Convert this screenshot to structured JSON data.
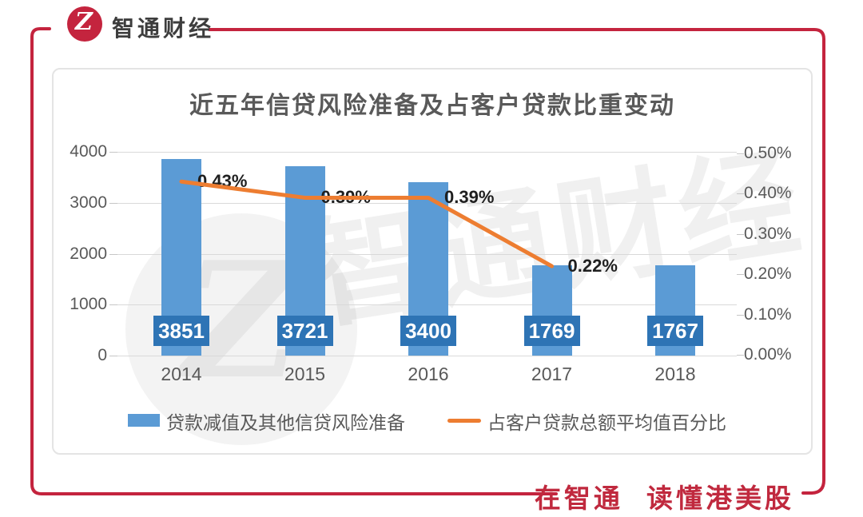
{
  "header": {
    "logo_text": "智通财经",
    "logo_glyph": "Z"
  },
  "footer": {
    "tagline": "在智通 读懂港美股"
  },
  "watermark": {
    "text": "智通财经",
    "glyph": "Z"
  },
  "colors": {
    "brand_red": "#C4243E",
    "bar": "#5B9BD5",
    "bar_label_bg": "#2E74B5",
    "line": "#ED7D31",
    "axis_text": "#595959",
    "gridline": "#D9D9D9",
    "title_text": "#595959"
  },
  "chart_data": {
    "type": "bar",
    "title": "近五年信贷风险准备及占客户贷款比重变动",
    "categories": [
      "2014",
      "2015",
      "2016",
      "2017",
      "2018"
    ],
    "series": [
      {
        "name": "贷款减值及其他信贷风险准备",
        "kind": "bar",
        "axis": "left",
        "values": [
          3851,
          3721,
          3400,
          1769,
          1767
        ],
        "value_labels": [
          "3851",
          "3721",
          "3400",
          "1769",
          "1767"
        ],
        "color": "#5B9BD5"
      },
      {
        "name": "占客户贷款总额平均值百分比",
        "kind": "line",
        "axis": "right",
        "values": [
          0.43,
          0.39,
          0.39,
          0.22,
          null
        ],
        "point_labels": [
          "0.43%",
          "0.39%",
          "0.39%",
          "0.22%",
          null
        ],
        "color": "#ED7D31"
      }
    ],
    "left_axis": {
      "min": 0,
      "max": 4000,
      "ticks": [
        "4000",
        "3000",
        "2000",
        "1000",
        "0"
      ]
    },
    "right_axis": {
      "min_value": 0,
      "max_value": 0.5,
      "ticks": [
        "0.50%",
        "0.40%",
        "0.30%",
        "0.20%",
        "0.10%",
        "0.00%"
      ]
    },
    "legend_position": "bottom",
    "grid": "horizontal"
  }
}
